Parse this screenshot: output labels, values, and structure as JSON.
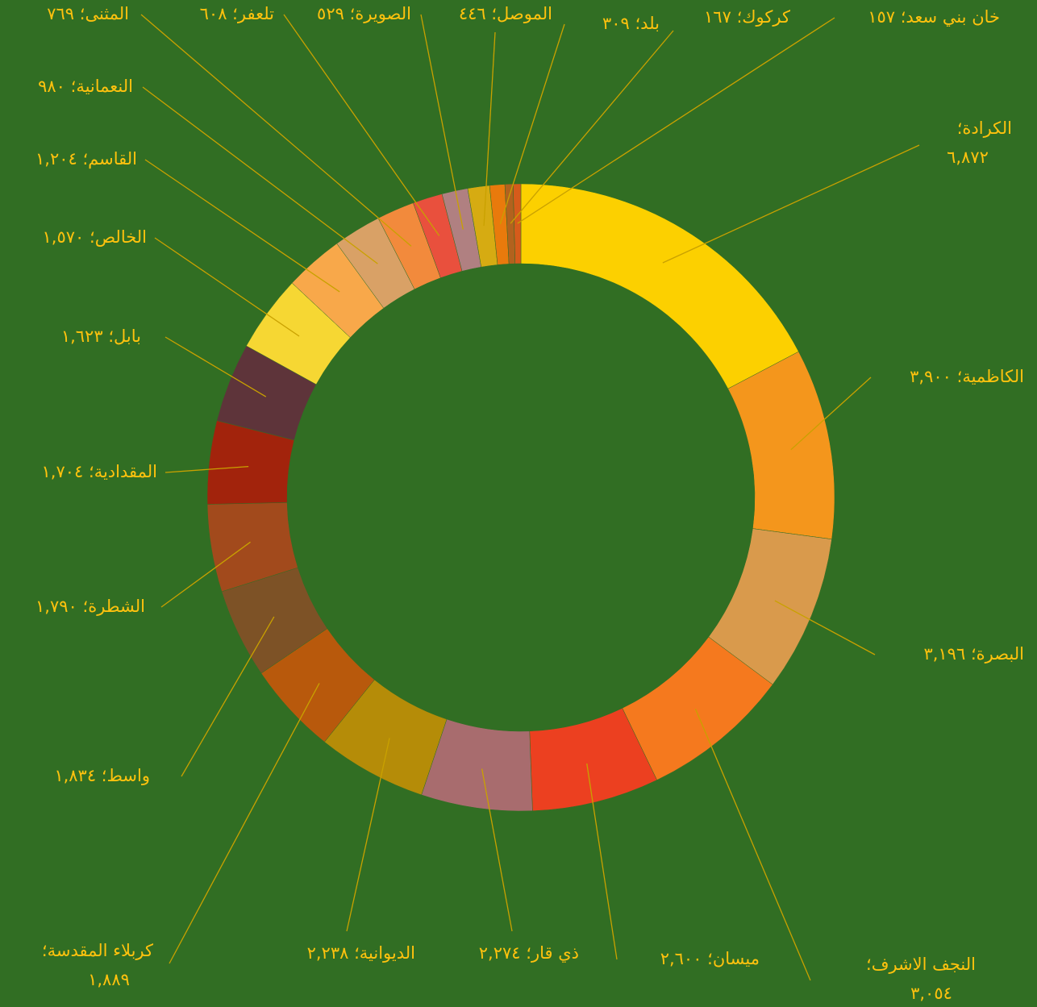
{
  "chart_data": {
    "type": "donut",
    "separator": "؛",
    "categories": [
      "الكرادة",
      "الكاظمية",
      "البصرة",
      "النجف الاشرف",
      "ميسان",
      "ذي قار",
      "الديوانية",
      "كربلاء المقدسة",
      "واسط",
      "الشطرة",
      "المقدادية",
      "بابل",
      "الخالص",
      "القاسم",
      "النعمانية",
      "المثنى",
      "تلعفر",
      "الصويرة",
      "الموصل",
      "بلد",
      "كركوك",
      "خان بني سعد"
    ],
    "values": [
      6872,
      3900,
      3196,
      3054,
      2600,
      2274,
      2238,
      1889,
      1834,
      1790,
      1704,
      1623,
      1570,
      1204,
      980,
      769,
      608,
      529,
      446,
      309,
      167,
      157
    ],
    "value_labels": [
      "٦,٨٧٢",
      "٣,٩٠٠",
      "٣,١٩٦",
      "٣,٠٥٤",
      "٢,٦٠٠",
      "٢,٢٧٤",
      "٢,٢٣٨",
      "١,٨٨٩",
      "١,٨٣٤",
      "١,٧٩٠",
      "١,٧٠٤",
      "١,٦٢٣",
      "١,٥٧٠",
      "١,٢٠٤",
      "٩٨٠",
      "٧٦٩",
      "٦٠٨",
      "٥٢٩",
      "٤٤٦",
      "٣٠٩",
      "١٦٧",
      "١٥٧"
    ],
    "colors": [
      "#fcd000",
      "#f4961c",
      "#d99a4c",
      "#f5791e",
      "#ec4020",
      "#a86c6e",
      "#b58c08",
      "#b8590c",
      "#7d5226",
      "#a24a1c",
      "#a2230c",
      "#5e343a",
      "#f6d733",
      "#f8a84a",
      "#d9a166",
      "#f28a3c",
      "#e9503d",
      "#b08081",
      "#d6ab12",
      "#e97a0c",
      "#b2621e",
      "#d65b1b"
    ]
  }
}
